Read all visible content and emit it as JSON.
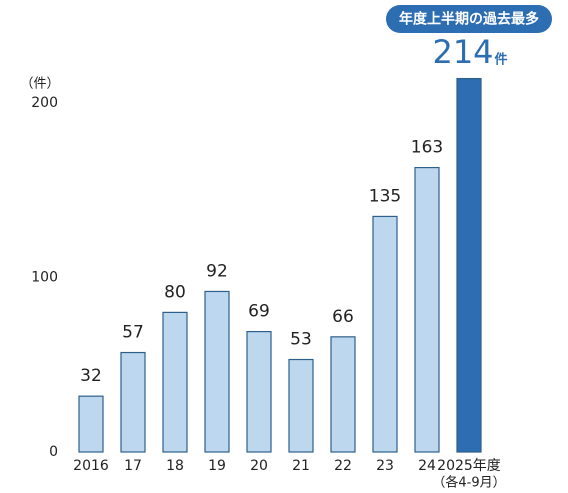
{
  "chart_data": {
    "type": "bar",
    "annotation": "年度上半期の過去最多",
    "y_unit": "（件）",
    "value_unit": "件",
    "categories": [
      "2016",
      "17",
      "18",
      "19",
      "20",
      "21",
      "22",
      "23",
      "24",
      "2025年度"
    ],
    "category_note": "（各4-9月）",
    "values": [
      32,
      57,
      80,
      92,
      69,
      53,
      66,
      135,
      163,
      214
    ],
    "colors": [
      "#bdd7ee",
      "#bdd7ee",
      "#bdd7ee",
      "#bdd7ee",
      "#bdd7ee",
      "#bdd7ee",
      "#bdd7ee",
      "#bdd7ee",
      "#bdd7ee",
      "#2d6db1"
    ],
    "outline_color": "#2e5f8a",
    "ylim": [
      0,
      200
    ],
    "yticks": [
      0,
      100,
      200
    ],
    "grid": false
  }
}
